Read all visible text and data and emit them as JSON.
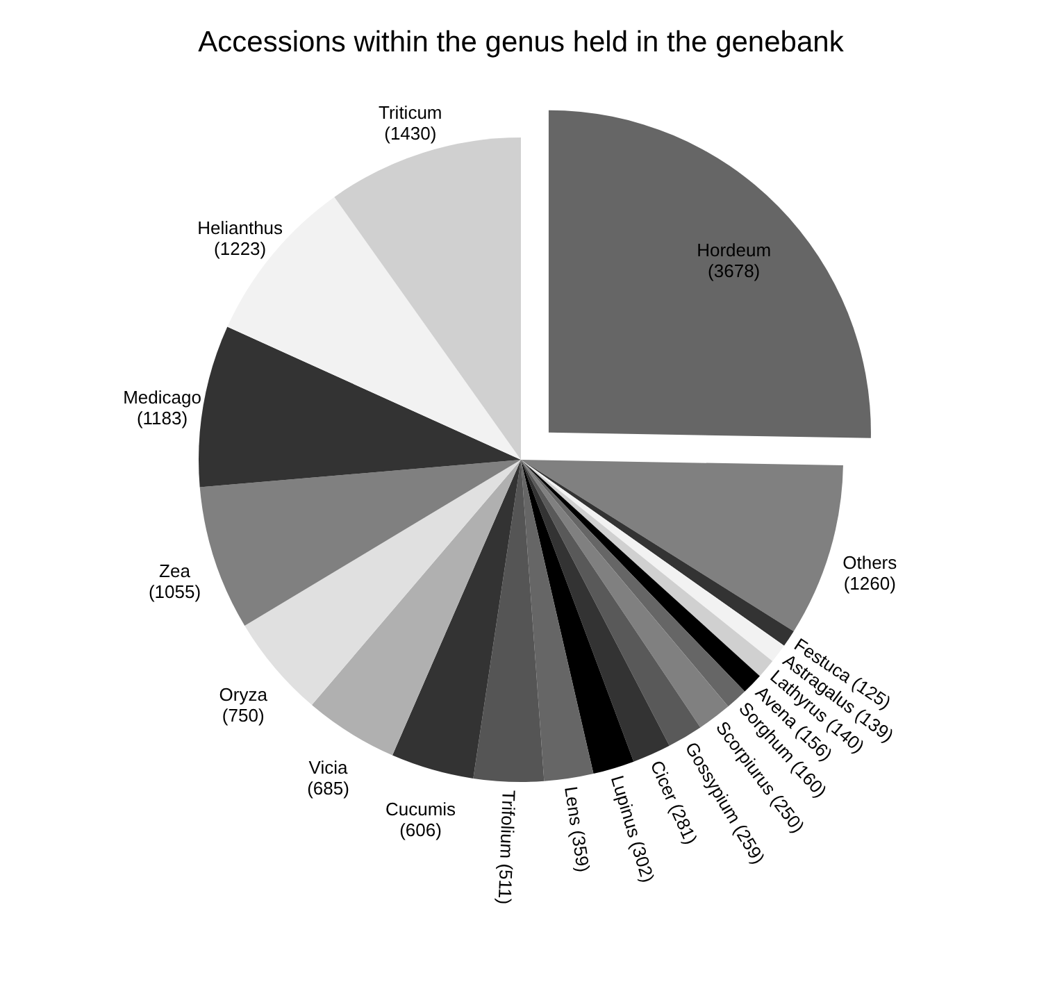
{
  "chart_data": {
    "type": "pie",
    "title": "Accessions within the genus held in the genebank",
    "categories": [
      "Hordeum",
      "Others",
      "Festuca",
      "Astragalus",
      "Lathyrus",
      "Avena",
      "Sorghum",
      "Scorpiurus",
      "Gossypium",
      "Cicer",
      "Lupinus",
      "Lens",
      "Trifolium",
      "Cucumis",
      "Vicia",
      "Oryza",
      "Zea",
      "Medicago",
      "Helianthus",
      "Triticum"
    ],
    "values": [
      3678,
      1260,
      125,
      139,
      140,
      156,
      160,
      250,
      259,
      281,
      302,
      359,
      511,
      606,
      685,
      750,
      1055,
      1183,
      1223,
      1430
    ],
    "colors": [
      "#666666",
      "#808080",
      "#333333",
      "#f2f2f2",
      "#d0d0d0",
      "#000000",
      "#666666",
      "#808080",
      "#595959",
      "#333333",
      "#000000",
      "#666666",
      "#555555",
      "#333333",
      "#b0b0b0",
      "#e0e0e0",
      "#808080",
      "#333333",
      "#f2f2f2",
      "#d0d0d0"
    ],
    "value_labels": [
      "(3678)",
      "(1260)",
      "(125)",
      "(139)",
      "(140)",
      "(156)",
      "(160)",
      "(250)",
      "(259)",
      "(281)",
      "(302)",
      "(359)",
      "(511)",
      "(606)",
      "(685)",
      "(750)",
      "(1055)",
      "(1183)",
      "(1223)",
      "(1430)"
    ]
  }
}
